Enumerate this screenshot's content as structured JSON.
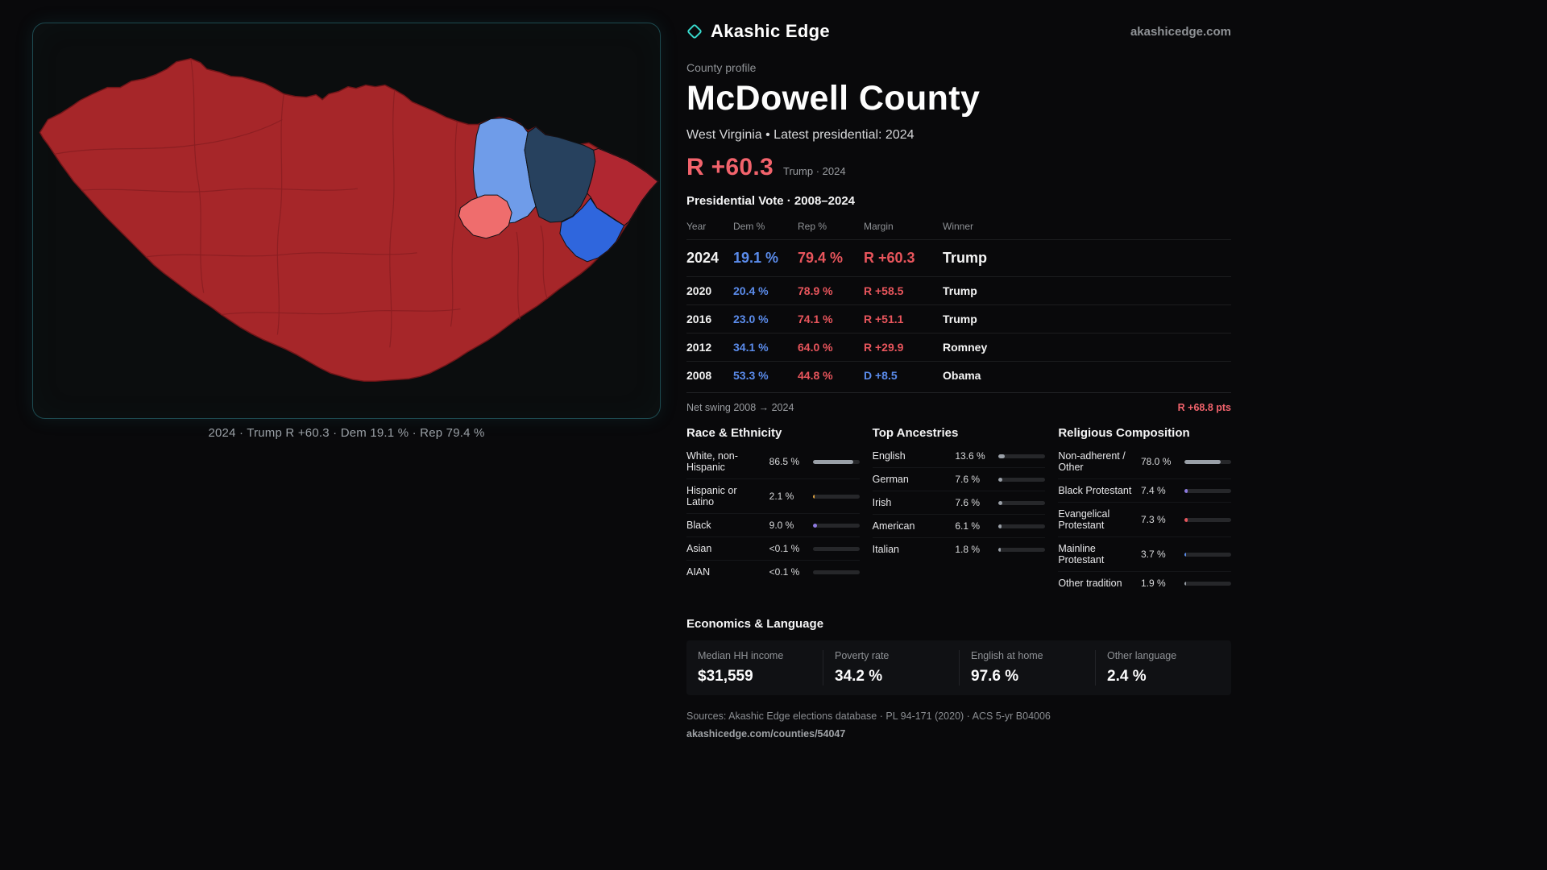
{
  "header": {
    "brand": "Akashic Edge",
    "site": "akashicedge.com"
  },
  "map": {
    "caption": "2024 · Trump R +60.3 · Dem 19.1 % · Rep 79.4 %"
  },
  "profile": {
    "kicker": "County profile",
    "title": "McDowell County",
    "subtitle": "West Virginia • Latest presidential: 2024",
    "headline_margin": "R +60.3",
    "headline_context": "Trump · 2024"
  },
  "vote_table": {
    "title": "Presidential Vote · 2008–2024",
    "columns": [
      "Year",
      "Dem %",
      "Rep %",
      "Margin",
      "Winner"
    ],
    "rows": [
      {
        "year": "2024",
        "dem": "19.1 %",
        "rep": "79.4 %",
        "margin": "R +60.3",
        "winner": "Trump",
        "party": "R",
        "emphasis": true
      },
      {
        "year": "2020",
        "dem": "20.4 %",
        "rep": "78.9 %",
        "margin": "R +58.5",
        "winner": "Trump",
        "party": "R",
        "emphasis": false
      },
      {
        "year": "2016",
        "dem": "23.0 %",
        "rep": "74.1 %",
        "margin": "R +51.1",
        "winner": "Trump",
        "party": "R",
        "emphasis": false
      },
      {
        "year": "2012",
        "dem": "34.1 %",
        "rep": "64.0 %",
        "margin": "R +29.9",
        "winner": "Romney",
        "party": "R",
        "emphasis": false
      },
      {
        "year": "2008",
        "dem": "53.3 %",
        "rep": "44.8 %",
        "margin": "D +8.5",
        "winner": "Obama",
        "party": "D",
        "emphasis": false
      }
    ],
    "net_swing_label": "Net swing 2008 → 2024",
    "net_swing_value": "R +68.8 pts"
  },
  "demographics": {
    "race": {
      "title": "Race & Ethnicity",
      "rows": [
        {
          "label": "White, non-Hispanic",
          "value": "86.5 %",
          "pct": 86.5,
          "color": "#9aa0a8"
        },
        {
          "label": "Hispanic or Latino",
          "value": "2.1 %",
          "pct": 2.1,
          "color": "#e0a23f"
        },
        {
          "label": "Black",
          "value": "9.0 %",
          "pct": 9.0,
          "color": "#8d7ae0"
        },
        {
          "label": "Asian",
          "value": "<0.1 %",
          "pct": 0.05,
          "color": "#9aa0a8"
        },
        {
          "label": "AIAN",
          "value": "<0.1 %",
          "pct": 0.05,
          "color": "#9aa0a8"
        }
      ]
    },
    "ancestries": {
      "title": "Top Ancestries",
      "rows": [
        {
          "label": "English",
          "value": "13.6 %",
          "pct": 13.6,
          "color": "#9aa0a8"
        },
        {
          "label": "German",
          "value": "7.6 %",
          "pct": 7.6,
          "color": "#9aa0a8"
        },
        {
          "label": "Irish",
          "value": "7.6 %",
          "pct": 7.6,
          "color": "#9aa0a8"
        },
        {
          "label": "American",
          "value": "6.1 %",
          "pct": 6.1,
          "color": "#9aa0a8"
        },
        {
          "label": "Italian",
          "value": "1.8 %",
          "pct": 1.8,
          "color": "#9aa0a8"
        }
      ]
    },
    "religion": {
      "title": "Religious Composition",
      "rows": [
        {
          "label": "Non-adherent / Other",
          "value": "78.0 %",
          "pct": 78.0,
          "color": "#9aa0a8"
        },
        {
          "label": "Black Protestant",
          "value": "7.4 %",
          "pct": 7.4,
          "color": "#8d7ae0"
        },
        {
          "label": "Evangelical Protestant",
          "value": "7.3 %",
          "pct": 7.3,
          "color": "#e8555c"
        },
        {
          "label": "Mainline Protestant",
          "value": "3.7 %",
          "pct": 3.7,
          "color": "#5b8cec"
        },
        {
          "label": "Other tradition",
          "value": "1.9 %",
          "pct": 1.9,
          "color": "#9aa0a8"
        }
      ]
    }
  },
  "economics": {
    "title": "Economics & Language",
    "stats": [
      {
        "label": "Median HH income",
        "value": "$31,559"
      },
      {
        "label": "Poverty rate",
        "value": "34.2 %"
      },
      {
        "label": "English at home",
        "value": "97.6 %"
      },
      {
        "label": "Other language",
        "value": "2.4 %"
      }
    ]
  },
  "footer": {
    "sources": "Sources: Akashic Edge elections database · PL 94-171 (2020) · ACS 5-yr B04006",
    "permalink": "akashicedge.com/counties/54047"
  },
  "colors": {
    "accent_teal": "#38d9cc",
    "rep_red": "#f2636c",
    "rep_red_table": "#e8555c",
    "dem_blue": "#5b8cec",
    "map_red": "#a62629",
    "map_red_alt": "#b02731",
    "map_dem_light": "#6f9ce9",
    "map_dem_navy": "#27415e",
    "map_dem_bright": "#2f66dd",
    "map_rep_light": "#ef6d6d"
  }
}
